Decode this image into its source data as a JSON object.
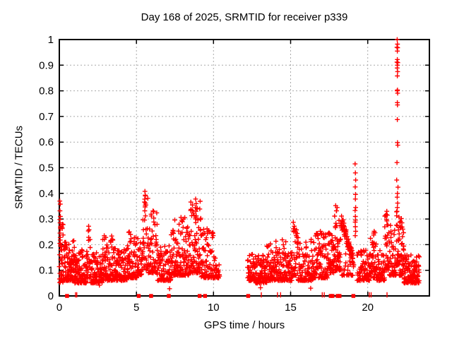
{
  "page": {
    "background": "#ffffff"
  },
  "chart_data": {
    "type": "scatter",
    "title": "Day 168 of 2025, SRMTID for receiver p339",
    "xlabel": "GPS time / hours",
    "ylabel": "SRMTID / TECUs",
    "xlim": [
      0,
      24
    ],
    "ylim": [
      0,
      1
    ],
    "xticks": [
      0,
      5,
      10,
      15,
      20
    ],
    "xtick_labels": [
      "0",
      "5",
      "10",
      "15",
      "20"
    ],
    "yticks": [
      0,
      0.1,
      0.2,
      0.3,
      0.4,
      0.5,
      0.6,
      0.7,
      0.8,
      0.9,
      1
    ],
    "ytick_labels": [
      "0",
      "0.1",
      "0.2",
      "0.3",
      "0.4",
      "0.5",
      "0.6",
      "0.7",
      "0.8",
      "0.9",
      "1"
    ],
    "grid": {
      "shown": true,
      "style": "dotted",
      "color": "#a9a9a9"
    },
    "legend": null,
    "colors": {
      "marker": "#ff0000",
      "axis": "#000000",
      "text": "#000000",
      "background": "#ffffff"
    },
    "seed": 1168,
    "series": [
      {
        "name": "SRMTID",
        "marker": "plus",
        "color": "#ff0000",
        "cloud_segments": [
          [
            0.0,
            0.25,
            30,
            0.05,
            0.3
          ],
          [
            0.25,
            1.0,
            100,
            0.06,
            0.22
          ],
          [
            1.0,
            1.85,
            100,
            0.05,
            0.18
          ],
          [
            1.85,
            2.05,
            16,
            0.07,
            0.27
          ],
          [
            2.05,
            2.8,
            85,
            0.05,
            0.17
          ],
          [
            2.8,
            3.5,
            80,
            0.06,
            0.25
          ],
          [
            3.5,
            4.4,
            95,
            0.06,
            0.19
          ],
          [
            4.4,
            5.1,
            80,
            0.07,
            0.25
          ],
          [
            5.1,
            5.42,
            30,
            0.08,
            0.21
          ],
          [
            5.42,
            5.75,
            32,
            0.1,
            0.4
          ],
          [
            5.75,
            6.35,
            60,
            0.09,
            0.34
          ],
          [
            6.35,
            7.25,
            90,
            0.06,
            0.2
          ],
          [
            7.25,
            8.45,
            130,
            0.08,
            0.31
          ],
          [
            8.45,
            9.2,
            85,
            0.09,
            0.37
          ],
          [
            9.2,
            10.15,
            90,
            0.07,
            0.26
          ],
          [
            10.15,
            10.4,
            18,
            0.07,
            0.13
          ],
          [
            12.2,
            12.7,
            52,
            0.06,
            0.17
          ],
          [
            12.7,
            13.45,
            80,
            0.05,
            0.16
          ],
          [
            13.45,
            13.95,
            52,
            0.06,
            0.22
          ],
          [
            13.95,
            14.7,
            75,
            0.06,
            0.22
          ],
          [
            14.7,
            15.1,
            40,
            0.06,
            0.19
          ],
          [
            15.1,
            15.45,
            32,
            0.08,
            0.29
          ],
          [
            15.45,
            16.5,
            100,
            0.06,
            0.23
          ],
          [
            16.5,
            17.4,
            90,
            0.07,
            0.25
          ],
          [
            17.4,
            17.85,
            48,
            0.09,
            0.25
          ],
          [
            17.85,
            18.25,
            50,
            0.1,
            0.34
          ],
          [
            18.3,
            19.05,
            24,
            0.08,
            0.17
          ],
          [
            19.3,
            20.15,
            80,
            0.06,
            0.18
          ],
          [
            20.15,
            20.6,
            48,
            0.07,
            0.25
          ],
          [
            20.6,
            21.1,
            45,
            0.06,
            0.18
          ],
          [
            21.1,
            21.4,
            34,
            0.1,
            0.33
          ],
          [
            21.4,
            21.85,
            48,
            0.08,
            0.28
          ],
          [
            21.85,
            22.05,
            28,
            0.12,
            0.33
          ],
          [
            22.05,
            22.35,
            40,
            0.08,
            0.3
          ],
          [
            22.35,
            23.35,
            120,
            0.05,
            0.16
          ]
        ],
        "ridge_segments": [
          [
            18.25,
            19.1,
            70,
            0.3,
            0.13,
            0.03
          ]
        ],
        "points": [
          [
            21.91,
            1.0
          ],
          [
            21.93,
            0.982
          ],
          [
            21.9,
            0.97
          ],
          [
            21.94,
            0.968
          ],
          [
            21.92,
            0.955
          ],
          [
            21.92,
            0.922
          ],
          [
            21.9,
            0.912
          ],
          [
            21.95,
            0.91
          ],
          [
            21.93,
            0.9
          ],
          [
            21.91,
            0.889
          ],
          [
            21.94,
            0.875
          ],
          [
            21.92,
            0.858
          ],
          [
            21.93,
            0.803
          ],
          [
            21.91,
            0.8
          ],
          [
            21.94,
            0.791
          ],
          [
            21.92,
            0.754
          ],
          [
            21.93,
            0.745
          ],
          [
            21.92,
            0.688
          ],
          [
            21.93,
            0.598
          ],
          [
            21.95,
            0.588
          ],
          [
            21.9,
            0.52
          ],
          [
            21.88,
            0.452
          ],
          [
            21.96,
            0.424
          ],
          [
            21.93,
            0.4
          ],
          [
            21.91,
            0.385
          ],
          [
            21.94,
            0.362
          ],
          [
            21.92,
            0.345
          ],
          [
            21.9,
            0.33
          ],
          [
            19.18,
            0.515
          ],
          [
            19.2,
            0.48
          ],
          [
            19.22,
            0.452
          ],
          [
            19.19,
            0.425
          ],
          [
            19.21,
            0.396
          ],
          [
            19.2,
            0.378
          ],
          [
            19.22,
            0.345
          ],
          [
            19.18,
            0.333
          ],
          [
            19.2,
            0.31
          ],
          [
            19.21,
            0.296
          ],
          [
            19.19,
            0.288
          ],
          [
            19.2,
            0.27
          ],
          [
            19.22,
            0.252
          ],
          [
            19.19,
            0.235
          ],
          [
            0.03,
            0.37
          ],
          [
            0.06,
            0.358
          ],
          [
            0.04,
            0.332
          ],
          [
            0.07,
            0.31
          ],
          [
            0.03,
            0.298
          ],
          [
            0.05,
            0.285
          ],
          [
            0.08,
            0.262
          ],
          [
            0.04,
            0.245
          ],
          [
            0.06,
            0.228
          ],
          [
            0.03,
            0.205
          ],
          [
            0.07,
            0.195
          ],
          [
            5.55,
            0.408
          ],
          [
            5.58,
            0.39
          ],
          [
            5.52,
            0.366
          ],
          [
            5.56,
            0.347
          ],
          [
            5.54,
            0.332
          ],
          [
            5.59,
            0.312
          ],
          [
            5.53,
            0.296
          ],
          [
            8.84,
            0.378
          ],
          [
            8.87,
            0.36
          ],
          [
            8.82,
            0.344
          ],
          [
            8.86,
            0.33
          ],
          [
            8.88,
            0.312
          ],
          [
            8.83,
            0.3
          ],
          [
            8.85,
            0.286
          ],
          [
            1.9,
            0.272
          ],
          [
            1.93,
            0.258
          ],
          [
            15.24,
            0.272
          ],
          [
            15.27,
            0.262
          ],
          [
            15.21,
            0.25
          ],
          [
            17.92,
            0.352
          ],
          [
            18.02,
            0.345
          ],
          [
            17.97,
            0.332
          ],
          [
            20.42,
            0.252
          ],
          [
            20.38,
            0.245
          ],
          [
            21.24,
            0.33
          ],
          [
            21.27,
            0.315
          ],
          [
            21.22,
            0.298
          ],
          [
            9.58,
            0.262
          ],
          [
            9.62,
            0.25
          ],
          [
            16.93,
            0.252
          ],
          [
            16.98,
            0.24
          ],
          [
            22.18,
            0.302
          ],
          [
            22.22,
            0.285
          ],
          [
            22.15,
            0.27
          ],
          [
            7.15,
            0.028
          ],
          [
            13.05,
            0.032
          ],
          [
            2.6,
            0.042
          ],
          [
            16.3,
            0.03
          ]
        ]
      },
      {
        "name": "zero-flag-squares",
        "marker": "filled-square",
        "color": "#ff0000",
        "y": 0,
        "x": [
          0.5,
          5.15,
          5.95,
          7.1,
          9.1,
          9.45,
          12.25,
          17.6,
          17.72,
          18.05,
          18.17,
          19.07
        ]
      },
      {
        "name": "zero-flag-ticks",
        "marker": "vtick",
        "color": "#ff0000",
        "y": 0,
        "x": [
          1.05,
          1.13,
          13.1,
          14.15,
          14.35,
          17.05,
          17.18,
          20.1,
          20.22,
          21.25
        ]
      }
    ]
  }
}
